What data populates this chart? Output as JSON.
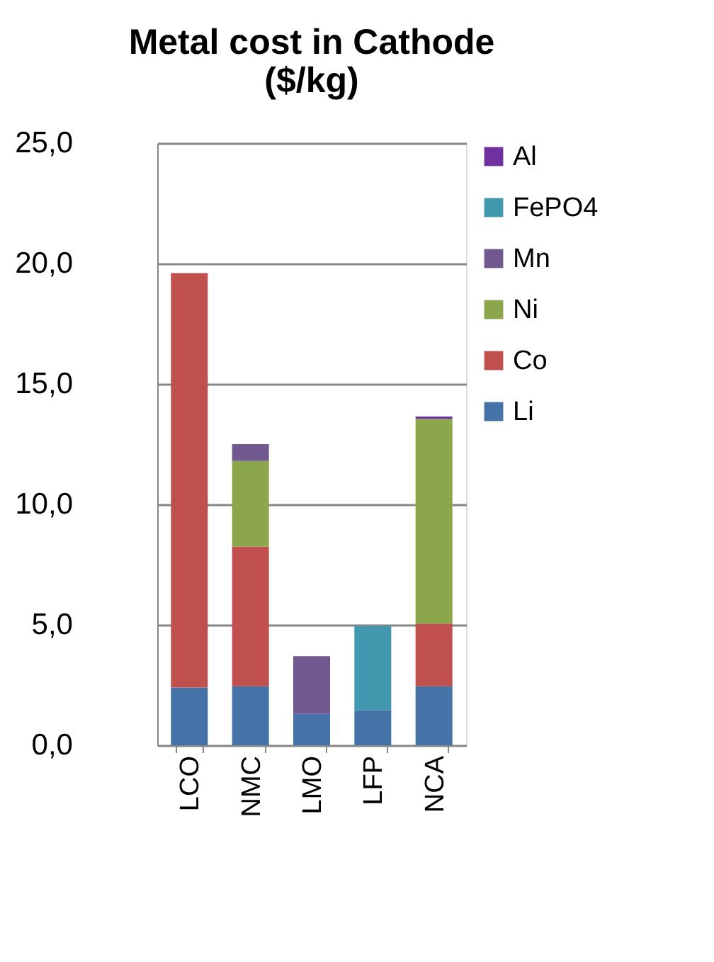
{
  "chart_data": {
    "type": "bar",
    "stacked": true,
    "title": [
      "Metal cost in Cathode",
      "($/kg)"
    ],
    "categories": [
      "LCO",
      "NMC",
      "LMO",
      "LFP",
      "NCA"
    ],
    "series": [
      {
        "name": "Li",
        "color": "#4572a7",
        "values": [
          2.4,
          2.45,
          1.3,
          1.45,
          2.45
        ]
      },
      {
        "name": "Co",
        "color": "#c0504d",
        "values": [
          17.2,
          5.8,
          0,
          0,
          2.6
        ]
      },
      {
        "name": "Ni",
        "color": "#8ba64b",
        "values": [
          0,
          3.55,
          0,
          0,
          8.5
        ]
      },
      {
        "name": "Mn",
        "color": "#71588f",
        "values": [
          0,
          0.7,
          2.4,
          0,
          0
        ]
      },
      {
        "name": "FePO4",
        "color": "#4198af",
        "values": [
          0,
          0,
          0,
          3.5,
          0
        ]
      },
      {
        "name": "Al",
        "color": "#7030a0",
        "values": [
          0,
          0,
          0,
          0,
          0.1
        ]
      }
    ],
    "ylim": [
      0,
      25
    ],
    "yticks": [
      {
        "value": 0,
        "label": "0,0"
      },
      {
        "value": 5,
        "label": "5,0"
      },
      {
        "value": 10,
        "label": "10,0"
      },
      {
        "value": 15,
        "label": "15,0"
      },
      {
        "value": 20,
        "label": "20,0"
      },
      {
        "value": 25,
        "label": "25,0"
      }
    ],
    "grid": "y",
    "legend": "right"
  }
}
